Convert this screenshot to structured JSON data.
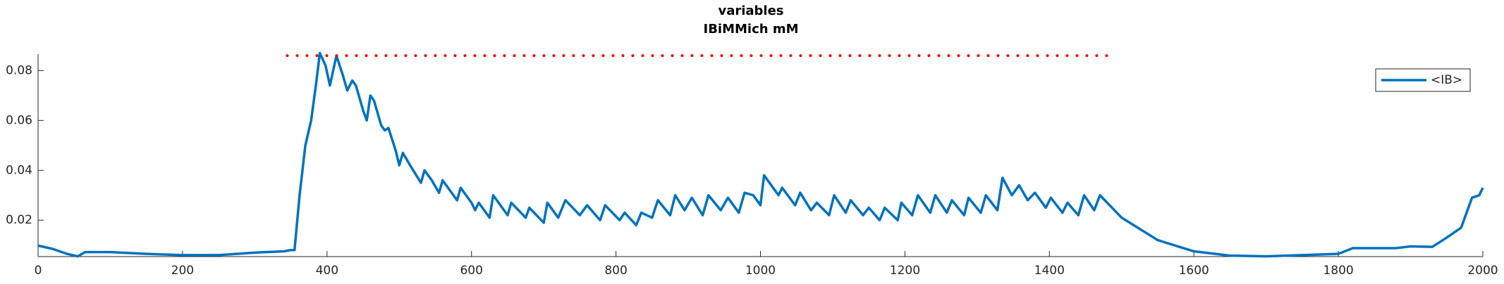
{
  "chart_data": {
    "type": "line",
    "title": "variables",
    "subtitle": "IBiMMich mM",
    "legend": "northeast",
    "grid": false,
    "xlim": [
      0,
      2000
    ],
    "xticks": [
      0,
      200,
      400,
      600,
      800,
      1000,
      1200,
      1400,
      1600,
      1800,
      2000
    ],
    "ylim": [
      0.0054,
      0.0866
    ],
    "yticks": [
      0.02,
      0.04,
      0.06,
      0.08
    ],
    "series": [
      {
        "name": "<IB>",
        "color": "#0072bd",
        "linestyle": "solid",
        "x": [
          0,
          20,
          40,
          55,
          65,
          100,
          150,
          200,
          250,
          300,
          340,
          350,
          355,
          362,
          370,
          378,
          385,
          390,
          398,
          404,
          413,
          422,
          428,
          435,
          440,
          450,
          455,
          460,
          465,
          475,
          480,
          485,
          495,
          500,
          505,
          515,
          530,
          535,
          545,
          555,
          560,
          570,
          580,
          585,
          600,
          605,
          610,
          625,
          630,
          650,
          655,
          675,
          680,
          700,
          705,
          720,
          730,
          750,
          760,
          778,
          785,
          805,
          812,
          828,
          835,
          850,
          858,
          875,
          882,
          895,
          905,
          920,
          928,
          945,
          955,
          970,
          978,
          990,
          1000,
          1005,
          1015,
          1025,
          1030,
          1048,
          1055,
          1070,
          1078,
          1095,
          1102,
          1118,
          1125,
          1142,
          1150,
          1165,
          1172,
          1190,
          1195,
          1210,
          1218,
          1235,
          1242,
          1258,
          1265,
          1282,
          1288,
          1305,
          1312,
          1328,
          1335,
          1348,
          1358,
          1370,
          1380,
          1395,
          1402,
          1418,
          1425,
          1440,
          1448,
          1462,
          1470,
          1480,
          1500,
          1550,
          1600,
          1650,
          1700,
          1750,
          1800,
          1820,
          1850,
          1880,
          1900,
          1930,
          1950,
          1970,
          1980,
          1985,
          1995,
          2000
        ],
        "values": [
          0.0098,
          0.0085,
          0.0065,
          0.0055,
          0.0072,
          0.0072,
          0.0065,
          0.006,
          0.006,
          0.007,
          0.0075,
          0.008,
          0.008,
          0.03,
          0.05,
          0.06,
          0.075,
          0.087,
          0.082,
          0.074,
          0.086,
          0.078,
          0.072,
          0.076,
          0.074,
          0.064,
          0.06,
          0.07,
          0.068,
          0.058,
          0.056,
          0.057,
          0.048,
          0.042,
          0.047,
          0.042,
          0.035,
          0.04,
          0.036,
          0.031,
          0.036,
          0.032,
          0.028,
          0.033,
          0.027,
          0.024,
          0.027,
          0.021,
          0.03,
          0.022,
          0.027,
          0.021,
          0.025,
          0.019,
          0.027,
          0.021,
          0.028,
          0.022,
          0.026,
          0.02,
          0.026,
          0.02,
          0.023,
          0.018,
          0.023,
          0.021,
          0.028,
          0.022,
          0.03,
          0.024,
          0.029,
          0.022,
          0.03,
          0.024,
          0.029,
          0.023,
          0.031,
          0.03,
          0.026,
          0.038,
          0.034,
          0.03,
          0.033,
          0.026,
          0.031,
          0.024,
          0.027,
          0.022,
          0.03,
          0.023,
          0.028,
          0.022,
          0.025,
          0.02,
          0.025,
          0.02,
          0.027,
          0.022,
          0.03,
          0.023,
          0.03,
          0.023,
          0.028,
          0.022,
          0.029,
          0.023,
          0.03,
          0.024,
          0.037,
          0.03,
          0.034,
          0.028,
          0.031,
          0.025,
          0.029,
          0.023,
          0.027,
          0.022,
          0.03,
          0.024,
          0.03,
          0.027,
          0.021,
          0.012,
          0.0075,
          0.0058,
          0.0055,
          0.006,
          0.0065,
          0.0088,
          0.0088,
          0.0088,
          0.0095,
          0.0093,
          0.013,
          0.017,
          0.025,
          0.029,
          0.03,
          0.033
        ]
      },
      {
        "color": "#ff0000",
        "linestyle": "dotted",
        "x": [
          345,
          1480
        ],
        "values": [
          0.086,
          0.086
        ]
      }
    ]
  }
}
